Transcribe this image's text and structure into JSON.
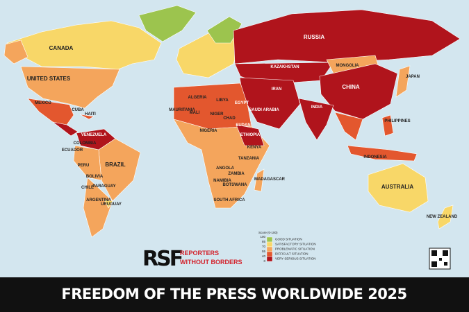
{
  "title": "FREEDOM OF THE PRESS WORLDWIDE 2025",
  "logo": {
    "mark": "RSF",
    "line1": "REPORTERS",
    "line2": "WITHOUT BORDERS"
  },
  "legend": {
    "title": "Score (0-100)",
    "scale": [
      100,
      85,
      70,
      55,
      40,
      0
    ],
    "items": [
      {
        "label": "GOOD SITUATION",
        "color": "#9cc44e"
      },
      {
        "label": "SATISFACTORY SITUATION",
        "color": "#f8d768"
      },
      {
        "label": "PROBLEMATIC SITUATION",
        "color": "#f4a55c"
      },
      {
        "label": "DIFFICULT SITUATION",
        "color": "#e3572e"
      },
      {
        "label": "VERY SERIOUS SITUATION",
        "color": "#b0141c"
      }
    ]
  },
  "countries": [
    "CANADA",
    "UNITED STATES",
    "MEXICO",
    "CUBA",
    "HAITI",
    "VENEZUELA",
    "COLOMBIA",
    "ECUADOR",
    "PERU",
    "BRAZIL",
    "BOLIVIA",
    "PARAGUAY",
    "CHILE",
    "ARGENTINA",
    "URUGUAY",
    "RUSSIA",
    "KAZAKHSTAN",
    "MONGOLIA",
    "CHINA",
    "INDIA",
    "IRAN",
    "SAUDI ARABIA",
    "EGYPT",
    "LIBYA",
    "ALGERIA",
    "MALI",
    "NIGER",
    "CHAD",
    "SUDAN",
    "ETHIOPIA",
    "NIGERIA",
    "MAURITANIA",
    "KENYA",
    "TANZANIA",
    "ANGOLA",
    "ZAMBIA",
    "NAMIBIA",
    "BOTSWANA",
    "SOUTH AFRICA",
    "MADAGASCAR",
    "AUSTRALIA",
    "NEW ZEALAND",
    "INDONESIA",
    "PHILIPPINES",
    "JAPAN"
  ]
}
